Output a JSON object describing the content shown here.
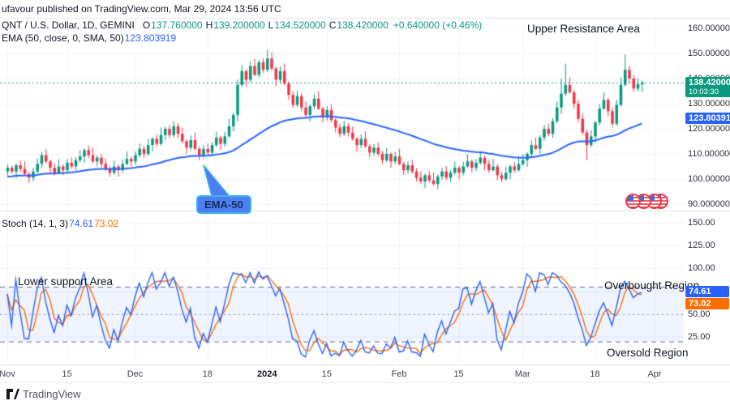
{
  "attribution": "ufavour published on TradingView.com, Mar 29, 2024 13:56 UTC",
  "footer": {
    "brand": "TradingView"
  },
  "colors": {
    "up": "#089981",
    "down": "#f23645",
    "ema_line": "#2962ff",
    "stoch_k": "#2962ff",
    "stoch_d": "#ff6d00",
    "price_badge": "#089981",
    "ema_badge": "#2962ff",
    "grid": "#f0f3fa",
    "separator": "#e0e3eb",
    "band_fill": "rgba(41,98,255,0.07)",
    "band_line": "#6a6d78"
  },
  "price_pane": {
    "legend": {
      "symbol": "QNT / U.S. Dollar, 1D, GEMINI",
      "o_label": "O",
      "o": "137.760000",
      "h_label": "H",
      "h": "139.200000",
      "l_label": "L",
      "l": "134.520000",
      "c_label": "C",
      "c": "138.420000",
      "change": "+0.640000 (+0.46%)",
      "ema_label": "EMA (50, close, 0, SMA, 50)",
      "ema_value": "123.803919"
    },
    "badges": {
      "price": {
        "value": "138.420000",
        "countdown": "10:03:30"
      },
      "ema": {
        "value": "123.803919"
      }
    },
    "annotations": {
      "upper_resistance": "Upper Resistance Area",
      "ema_callout": "EMA-50"
    },
    "y_ticks": [
      "160.000000",
      "150.000000",
      "140.000000",
      "130.000000",
      "120.000000",
      "110.000000",
      "100.000000",
      "90.000000"
    ]
  },
  "stoch_pane": {
    "legend": {
      "label": "Stoch (14, 1, 3)",
      "k": "74.61",
      "d": "73.02"
    },
    "badges": {
      "k": "74.61",
      "d": "73.02"
    },
    "annotations": {
      "lower_support": "Lower support Area",
      "overbought": "Overbought Region",
      "oversold": "Oversold Region"
    },
    "y_ticks": [
      "150.00",
      "125.00",
      "100.00",
      "75.00",
      "50.00",
      "25.00"
    ]
  },
  "time_axis": [
    {
      "label": "Nov",
      "index": 0
    },
    {
      "label": "15",
      "index": 14
    },
    {
      "label": "Dec",
      "index": 30
    },
    {
      "label": "18",
      "index": 47
    },
    {
      "label": "2024",
      "index": 61,
      "major": true
    },
    {
      "label": "15",
      "index": 75
    },
    {
      "label": "Feb",
      "index": 92
    },
    {
      "label": "15",
      "index": 106
    },
    {
      "label": "Mar",
      "index": 121
    },
    {
      "label": "18",
      "index": 138
    },
    {
      "label": "Apr",
      "index": 152
    }
  ],
  "chart_data": [
    {
      "type": "candlestick",
      "title": "QNT / U.S. Dollar",
      "interval": "1D",
      "exchange": "GEMINI",
      "start_date": "2023-11-01",
      "last_bar": {
        "open": 137.76,
        "high": 139.2,
        "low": 134.52,
        "close": 138.42,
        "change": 0.64,
        "change_pct": 0.46
      },
      "price_line": 138.42,
      "ylim": [
        87,
        165
      ],
      "y_tick_values": [
        160,
        150,
        140,
        130,
        120,
        110,
        100,
        90
      ],
      "overlays": [
        {
          "type": "EMA",
          "length": 50,
          "source": "close",
          "offset": 0,
          "smoothing": "SMA",
          "smoothing_length": 50,
          "last_value": 123.803919
        }
      ],
      "ohlc": [
        [
          103.0,
          105.7,
          101.4,
          104.5
        ],
        [
          104.5,
          105.4,
          102.2,
          103.0
        ],
        [
          103.0,
          106.2,
          100.4,
          105.5
        ],
        [
          105.5,
          107.3,
          102.9,
          104.0
        ],
        [
          104.0,
          107.0,
          101.4,
          102.0
        ],
        [
          102.0,
          102.9,
          98.5,
          100.5
        ],
        [
          100.5,
          104.5,
          99.2,
          103.0
        ],
        [
          103.0,
          108.1,
          102.1,
          106.0
        ],
        [
          106.0,
          110.7,
          104.4,
          109.5
        ],
        [
          109.5,
          111.9,
          106.2,
          107.0
        ],
        [
          107.0,
          107.7,
          101.9,
          104.5
        ],
        [
          104.5,
          106.3,
          101.4,
          102.5
        ],
        [
          102.5,
          108.0,
          101.9,
          105.0
        ],
        [
          105.0,
          105.9,
          101.5,
          103.5
        ],
        [
          103.5,
          108.0,
          102.2,
          106.5
        ],
        [
          106.5,
          108.6,
          104.1,
          105.0
        ],
        [
          105.0,
          108.7,
          103.4,
          107.5
        ],
        [
          107.5,
          111.4,
          106.7,
          109.0
        ],
        [
          109.0,
          112.2,
          106.4,
          111.5
        ],
        [
          111.5,
          113.3,
          108.4,
          109.5
        ],
        [
          109.5,
          112.5,
          106.4,
          107.0
        ],
        [
          107.0,
          109.4,
          105.0,
          108.5
        ],
        [
          108.5,
          110.0,
          104.7,
          106.0
        ],
        [
          106.0,
          108.1,
          103.1,
          104.0
        ],
        [
          104.0,
          105.2,
          100.9,
          102.5
        ],
        [
          102.5,
          107.4,
          101.7,
          105.0
        ],
        [
          105.0,
          105.7,
          100.9,
          103.5
        ],
        [
          103.5,
          107.8,
          102.4,
          106.0
        ],
        [
          106.0,
          111.0,
          105.4,
          108.0
        ],
        [
          108.0,
          108.9,
          105.0,
          107.0
        ],
        [
          107.0,
          111.0,
          105.7,
          109.5
        ],
        [
          109.5,
          114.1,
          108.6,
          112.0
        ],
        [
          112.0,
          113.2,
          108.4,
          110.0
        ],
        [
          110.0,
          115.9,
          109.2,
          113.5
        ],
        [
          113.5,
          116.7,
          110.9,
          116.0
        ],
        [
          116.0,
          117.8,
          112.9,
          114.0
        ],
        [
          114.0,
          120.5,
          113.4,
          117.5
        ],
        [
          117.5,
          120.9,
          115.5,
          120.0
        ],
        [
          120.0,
          121.5,
          116.2,
          117.5
        ],
        [
          117.5,
          123.1,
          116.6,
          121.0
        ],
        [
          121.0,
          122.2,
          116.4,
          118.0
        ],
        [
          118.0,
          120.4,
          114.2,
          115.0
        ],
        [
          115.0,
          115.7,
          109.9,
          112.5
        ],
        [
          112.5,
          117.3,
          111.4,
          115.5
        ],
        [
          115.5,
          118.5,
          111.4,
          112.0
        ],
        [
          112.0,
          112.9,
          107.5,
          109.5
        ],
        [
          109.5,
          113.5,
          108.2,
          112.0
        ],
        [
          112.0,
          114.1,
          109.6,
          110.5
        ],
        [
          110.5,
          114.7,
          108.9,
          113.5
        ],
        [
          113.5,
          118.9,
          112.7,
          116.5
        ],
        [
          116.5,
          117.2,
          111.4,
          114.0
        ],
        [
          114.0,
          118.8,
          112.9,
          117.0
        ],
        [
          117.0,
          124.0,
          116.4,
          121.0
        ],
        [
          121.0,
          126.4,
          119.0,
          125.5
        ],
        [
          125.5,
          139.5,
          123.0,
          137.5
        ],
        [
          137.5,
          145.4,
          136.7,
          143.0
        ],
        [
          143.0,
          143.7,
          136.9,
          139.5
        ],
        [
          139.5,
          146.8,
          138.4,
          145.0
        ],
        [
          145.0,
          148.0,
          140.9,
          141.5
        ],
        [
          141.5,
          147.4,
          140.4,
          146.5
        ],
        [
          146.5,
          148.0,
          142.2,
          143.5
        ],
        [
          143.5,
          151.5,
          142.6,
          148.0
        ],
        [
          148.0,
          150.4,
          143.2,
          144.0
        ],
        [
          144.0,
          144.7,
          136.9,
          139.5
        ],
        [
          139.5,
          144.8,
          138.4,
          143.0
        ],
        [
          143.0,
          146.0,
          137.4,
          138.0
        ],
        [
          138.0,
          138.9,
          131.5,
          133.5
        ],
        [
          133.5,
          135.0,
          128.2,
          129.5
        ],
        [
          129.5,
          135.1,
          128.6,
          133.0
        ],
        [
          133.0,
          134.2,
          126.9,
          128.5
        ],
        [
          128.5,
          130.9,
          124.7,
          125.5
        ],
        [
          125.5,
          129.7,
          122.9,
          129.0
        ],
        [
          129.0,
          133.8,
          127.9,
          132.0
        ],
        [
          132.0,
          135.0,
          127.4,
          128.0
        ],
        [
          128.0,
          128.9,
          122.5,
          124.5
        ],
        [
          124.5,
          129.0,
          123.2,
          127.5
        ],
        [
          127.5,
          129.6,
          122.6,
          123.5
        ],
        [
          123.5,
          124.4,
          118.5,
          120.5
        ],
        [
          120.5,
          122.0,
          116.7,
          118.0
        ],
        [
          118.0,
          123.1,
          117.1,
          121.0
        ],
        [
          121.0,
          122.2,
          116.9,
          118.5
        ],
        [
          118.5,
          120.9,
          115.2,
          116.0
        ],
        [
          116.0,
          116.7,
          110.9,
          113.5
        ],
        [
          113.5,
          117.8,
          112.4,
          116.0
        ],
        [
          116.0,
          119.0,
          112.4,
          113.0
        ],
        [
          113.0,
          113.9,
          108.5,
          110.5
        ],
        [
          110.5,
          114.0,
          109.2,
          112.5
        ],
        [
          112.5,
          114.6,
          109.1,
          110.0
        ],
        [
          110.0,
          111.2,
          105.9,
          107.5
        ],
        [
          107.5,
          112.4,
          106.7,
          110.0
        ],
        [
          110.0,
          110.7,
          104.4,
          107.0
        ],
        [
          107.0,
          110.8,
          105.9,
          109.0
        ],
        [
          109.0,
          112.0,
          105.4,
          106.0
        ],
        [
          106.0,
          106.9,
          101.5,
          103.5
        ],
        [
          103.5,
          107.0,
          102.2,
          105.5
        ],
        [
          105.5,
          107.6,
          102.1,
          103.0
        ],
        [
          103.0,
          104.2,
          98.9,
          100.5
        ],
        [
          100.5,
          102.9,
          98.2,
          99.0
        ],
        [
          99.0,
          102.2,
          96.4,
          101.5
        ],
        [
          101.5,
          103.3,
          98.4,
          99.5
        ],
        [
          99.5,
          102.5,
          97.4,
          98.0
        ],
        [
          98.0,
          101.9,
          96.0,
          101.0
        ],
        [
          101.0,
          104.5,
          99.7,
          103.0
        ],
        [
          103.0,
          105.1,
          99.6,
          100.5
        ],
        [
          100.5,
          103.7,
          98.9,
          102.5
        ],
        [
          102.5,
          106.9,
          101.7,
          104.5
        ],
        [
          104.5,
          105.2,
          99.9,
          102.5
        ],
        [
          102.5,
          106.8,
          101.4,
          105.0
        ],
        [
          105.0,
          110.0,
          104.4,
          107.0
        ],
        [
          107.0,
          107.9,
          102.5,
          104.5
        ],
        [
          104.5,
          108.0,
          103.2,
          106.5
        ],
        [
          106.5,
          110.6,
          105.6,
          108.5
        ],
        [
          108.5,
          109.2,
          103.4,
          106.0
        ],
        [
          106.0,
          107.8,
          102.4,
          103.5
        ],
        [
          103.5,
          108.0,
          102.9,
          105.0
        ],
        [
          105.0,
          105.9,
          99.5,
          101.5
        ],
        [
          101.5,
          103.0,
          98.7,
          100.0
        ],
        [
          100.0,
          104.9,
          99.1,
          102.5
        ],
        [
          102.5,
          105.7,
          99.9,
          105.0
        ],
        [
          105.0,
          106.8,
          102.4,
          103.5
        ],
        [
          103.5,
          109.0,
          102.9,
          106.0
        ],
        [
          106.0,
          109.9,
          105.2,
          107.5
        ],
        [
          107.5,
          110.7,
          104.9,
          110.0
        ],
        [
          110.0,
          115.3,
          108.9,
          113.5
        ],
        [
          113.5,
          116.5,
          111.4,
          112.0
        ],
        [
          112.0,
          117.4,
          110.0,
          116.5
        ],
        [
          116.5,
          121.5,
          115.2,
          120.0
        ],
        [
          120.0,
          122.1,
          117.1,
          118.0
        ],
        [
          118.0,
          124.2,
          116.4,
          123.0
        ],
        [
          123.0,
          130.9,
          122.2,
          128.5
        ],
        [
          128.5,
          140.0,
          125.9,
          134.0
        ],
        [
          134.0,
          146.0,
          132.9,
          137.5
        ],
        [
          137.5,
          140.5,
          133.9,
          134.5
        ],
        [
          134.5,
          135.4,
          128.0,
          130.0
        ],
        [
          130.0,
          131.5,
          122.7,
          124.0
        ],
        [
          124.0,
          126.1,
          117.6,
          118.5
        ],
        [
          118.5,
          119.7,
          107.5,
          113.5
        ],
        [
          113.5,
          119.4,
          112.7,
          117.0
        ],
        [
          117.0,
          123.2,
          114.4,
          122.5
        ],
        [
          122.5,
          129.8,
          121.4,
          128.0
        ],
        [
          128.0,
          134.5,
          127.4,
          131.5
        ],
        [
          131.5,
          132.4,
          125.0,
          127.0
        ],
        [
          127.0,
          128.5,
          120.7,
          122.0
        ],
        [
          122.0,
          131.6,
          121.1,
          129.5
        ],
        [
          129.5,
          140.5,
          128.9,
          137.5
        ],
        [
          137.5,
          149.5,
          136.9,
          143.5
        ],
        [
          143.5,
          145.0,
          138.0,
          140.0
        ],
        [
          140.0,
          141.5,
          134.7,
          136.0
        ],
        [
          136.0,
          140.0,
          134.9,
          137.76
        ],
        [
          137.76,
          139.2,
          134.52,
          138.42
        ]
      ]
    },
    {
      "type": "line",
      "title": "Stochastic",
      "params": {
        "k_length": 14,
        "k_smoothing": 1,
        "d_smoothing": 3
      },
      "series_derived_from": "ohlc of pane 0",
      "last_values": {
        "k": 74.61,
        "d": 73.02
      },
      "bands": {
        "overbought": 80,
        "middle": 50,
        "oversold": 20
      },
      "ylim": [
        0,
        160
      ],
      "y_tick_values": [
        150,
        125,
        100,
        75,
        50,
        25
      ]
    }
  ]
}
